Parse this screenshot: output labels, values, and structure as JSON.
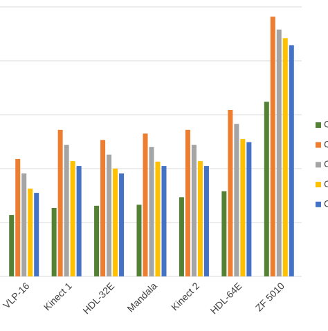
{
  "chart_data": {
    "type": "bar",
    "categories": [
      "VLP-16",
      "Kinect 1",
      "HDL-32E",
      "Mandala",
      "Kinect 2",
      "HDL-64E",
      "ZF 5010"
    ],
    "series": [
      {
        "name": "C",
        "color": "#548235",
        "values": [
          1.14,
          1.27,
          1.31,
          1.33,
          1.47,
          1.58,
          3.24
        ]
      },
      {
        "name": "C",
        "color": "#ed7d31",
        "values": [
          2.18,
          2.72,
          2.53,
          2.65,
          2.72,
          3.09,
          4.82
        ]
      },
      {
        "name": "C",
        "color": "#a5a5a5",
        "values": [
          1.91,
          2.44,
          2.26,
          2.4,
          2.44,
          2.83,
          4.58
        ]
      },
      {
        "name": "C",
        "color": "#ffc000",
        "values": [
          1.63,
          2.14,
          2.0,
          2.13,
          2.14,
          2.55,
          4.42
        ]
      },
      {
        "name": "C",
        "color": "#4472c4",
        "values": [
          1.55,
          2.05,
          1.91,
          2.05,
          2.05,
          2.49,
          4.29
        ]
      }
    ],
    "ylim": [
      0,
      5
    ],
    "yticks": [
      0,
      1,
      2,
      3,
      4,
      5
    ],
    "grid": true,
    "ytick_labels": false,
    "legend": "right"
  }
}
